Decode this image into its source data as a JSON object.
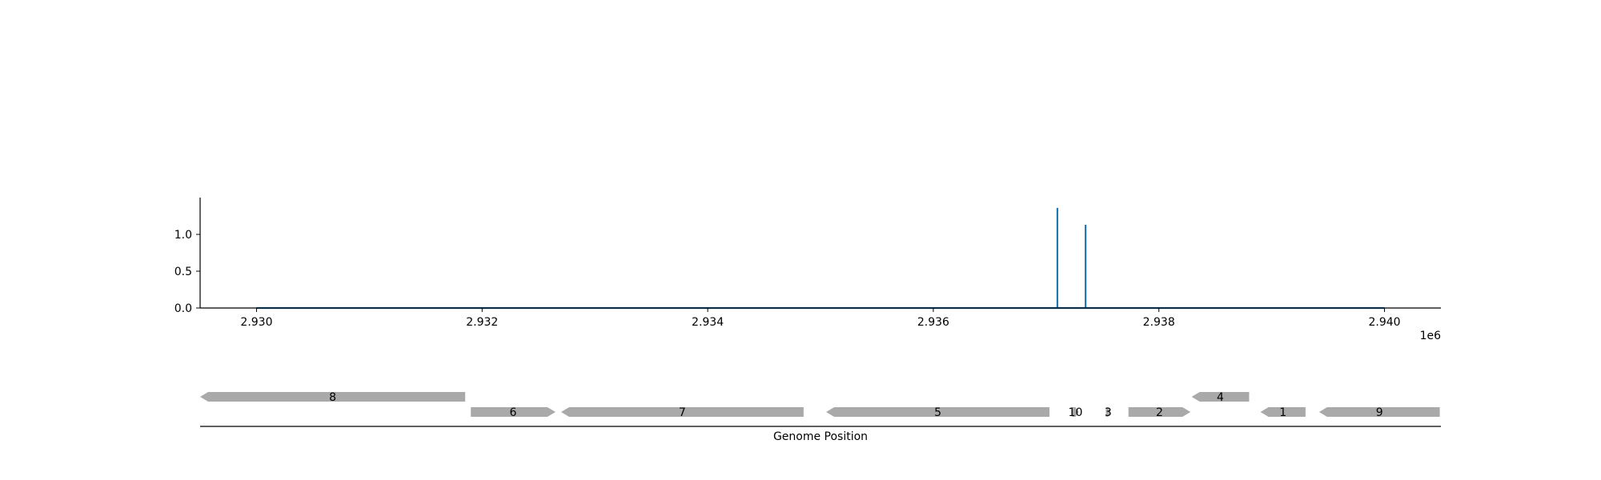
{
  "colors": {
    "signal": "#1f77b4",
    "gene": "#a9a9a9",
    "axis": "#000000",
    "background": "#ffffff"
  },
  "chart_data": [
    {
      "type": "line",
      "title": "",
      "xlabel": "",
      "ylabel": "",
      "xlim": [
        2929500,
        2940500
      ],
      "ylim": [
        0,
        1.5
      ],
      "x_offset_label": "1e6",
      "x_ticks": [
        2930000,
        2932000,
        2934000,
        2936000,
        2938000,
        2940000
      ],
      "x_tick_labels": [
        "2.930",
        "2.932",
        "2.934",
        "2.936",
        "2.938",
        "2.940"
      ],
      "y_ticks": [
        0.0,
        0.5,
        1.0
      ],
      "y_tick_labels": [
        "0.0",
        "0.5",
        "1.0"
      ],
      "grid": false,
      "series": [
        {
          "x": [
            2930000,
            2937100,
            2937100,
            2937100,
            2937350,
            2937350,
            2937350,
            2940000
          ],
          "y": [
            0,
            0,
            1.36,
            0,
            0,
            1.13,
            0,
            0
          ]
        }
      ]
    },
    {
      "type": "gene_map",
      "xlabel": "Genome Position",
      "xlim": [
        2929500,
        2940500
      ],
      "genes": [
        {
          "label": "8",
          "start": 2929500,
          "end": 2931850,
          "strand": "-",
          "row": 1
        },
        {
          "label": "6",
          "start": 2931900,
          "end": 2932650,
          "strand": "+",
          "row": 0
        },
        {
          "label": "7",
          "start": 2932700,
          "end": 2934850,
          "strand": "-",
          "row": 0
        },
        {
          "label": "5",
          "start": 2935050,
          "end": 2937030,
          "strand": "-",
          "row": 0
        },
        {
          "label": "10",
          "start": 2937230,
          "end": 2937290,
          "strand": "+",
          "row": 0
        },
        {
          "label": "3",
          "start": 2937530,
          "end": 2937570,
          "strand": "+",
          "row": 0
        },
        {
          "label": "2",
          "start": 2937730,
          "end": 2938280,
          "strand": "+",
          "row": 0
        },
        {
          "label": "4",
          "start": 2938290,
          "end": 2938800,
          "strand": "-",
          "row": 1
        },
        {
          "label": "1",
          "start": 2938900,
          "end": 2939300,
          "strand": "-",
          "row": 0
        },
        {
          "label": "9",
          "start": 2939420,
          "end": 2940490,
          "strand": "-",
          "row": 0
        }
      ]
    }
  ]
}
